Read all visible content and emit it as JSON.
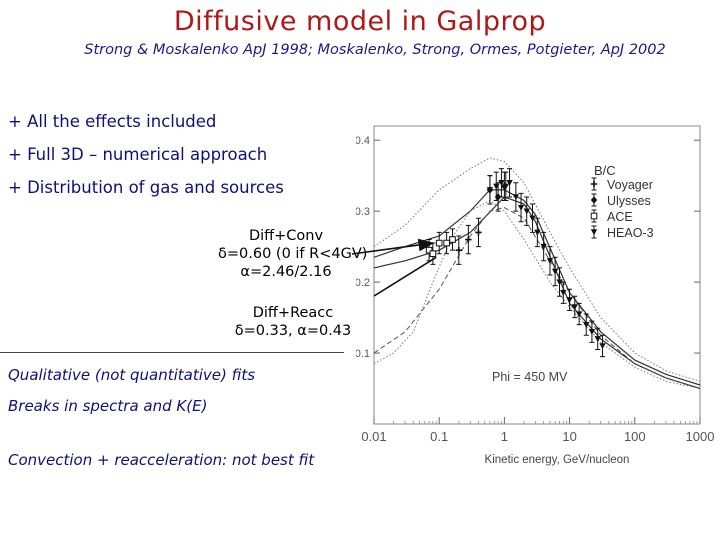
{
  "slide": {
    "title": "Diffusive model in Galprop",
    "subtitle": "Strong & Moskalenko ApJ 1998; Moskalenko, Strong, Ormes, Potgieter, ApJ 2002",
    "bullets": [
      "+ All the effects included",
      "+ Full 3D – numerical approach",
      "+ Distribution of gas and sources"
    ],
    "conv_note": {
      "line1": "Diff+Conv",
      "line2": "δ=0.60 (0 if R<4GV)",
      "line3": "α=2.46/2.16"
    },
    "reacc_note": {
      "line1": "Diff+Reacc",
      "line2": "δ=0.33, α=0.43"
    },
    "notes": [
      "Qualitative (not quantitative) fits",
      "Breaks in spectra and K(E)",
      "Convection + reacceleration: not best fit"
    ]
  },
  "chart_data": {
    "type": "scatter",
    "title": "",
    "ratio_label": "B/C",
    "phi_label": "Phi = 450 MV",
    "xlabel": "Kinetic energy, GeV/nucleon",
    "ylabel": "",
    "xscale": "log",
    "xlim": [
      0.01,
      1000
    ],
    "ylim": [
      0,
      0.42
    ],
    "x_ticks": [
      0.01,
      0.1,
      1,
      10,
      100,
      1000
    ],
    "x_tick_labels": [
      "0.01",
      "0.1",
      "1",
      "10",
      "100",
      "1000"
    ],
    "y_ticks": [
      0.1,
      0.2,
      0.3,
      0.4
    ],
    "y_tick_labels": [
      "0.1",
      "0.2",
      "0.3",
      "0.4"
    ],
    "legend_position": "top-right",
    "colors": {
      "data": "#111111",
      "model_solid": "#333333",
      "model_dotted": "#777777",
      "model_dashed": "#555555",
      "arrow": "#111111"
    },
    "series": [
      {
        "name": "Voyager",
        "marker": "plus",
        "x": [
          0.2,
          0.28,
          0.4
        ],
        "y": [
          0.245,
          0.26,
          0.27
        ],
        "err": [
          0.02,
          0.02,
          0.02
        ]
      },
      {
        "name": "Ulysses",
        "marker": "diamond",
        "x": [
          0.6,
          0.8,
          1.0
        ],
        "y": [
          0.33,
          0.32,
          0.335
        ],
        "err": [
          0.02,
          0.02,
          0.02
        ]
      },
      {
        "name": "ACE",
        "marker": "square",
        "x": [
          0.07,
          0.08,
          0.1,
          0.13,
          0.16
        ],
        "y": [
          0.245,
          0.24,
          0.255,
          0.255,
          0.26
        ],
        "err": [
          0.015,
          0.015,
          0.015,
          0.015,
          0.015
        ]
      },
      {
        "name": "HEAO-3",
        "marker": "triangle",
        "x": [
          0.6,
          0.75,
          0.9,
          1.05,
          1.2,
          1.5,
          1.8,
          2.2,
          2.7,
          3.2,
          4,
          5,
          6,
          7,
          8,
          10,
          12,
          14,
          18,
          22,
          27,
          32
        ],
        "y": [
          0.33,
          0.335,
          0.34,
          0.335,
          0.34,
          0.32,
          0.305,
          0.3,
          0.29,
          0.27,
          0.25,
          0.23,
          0.215,
          0.2,
          0.185,
          0.175,
          0.165,
          0.155,
          0.14,
          0.13,
          0.12,
          0.11
        ],
        "err": [
          0.02,
          0.02,
          0.02,
          0.02,
          0.02,
          0.02,
          0.02,
          0.02,
          0.02,
          0.02,
          0.02,
          0.02,
          0.02,
          0.02,
          0.015,
          0.015,
          0.015,
          0.015,
          0.015,
          0.015,
          0.015,
          0.015
        ]
      }
    ],
    "model_curves": [
      {
        "style": "solid",
        "x": [
          0.01,
          0.03,
          0.1,
          0.3,
          1,
          2,
          3,
          10,
          30,
          100,
          300,
          1000
        ],
        "y": [
          0.22,
          0.23,
          0.245,
          0.27,
          0.32,
          0.31,
          0.285,
          0.17,
          0.12,
          0.085,
          0.065,
          0.05
        ]
      },
      {
        "style": "solid",
        "x": [
          0.01,
          0.03,
          0.1,
          0.3,
          0.6,
          1,
          2,
          3,
          10,
          30,
          100,
          300,
          1000
        ],
        "y": [
          0.235,
          0.25,
          0.265,
          0.3,
          0.33,
          0.33,
          0.315,
          0.295,
          0.185,
          0.13,
          0.09,
          0.07,
          0.055
        ]
      },
      {
        "style": "dotted",
        "x": [
          0.01,
          0.03,
          0.1,
          0.3,
          0.6,
          1,
          2,
          5,
          10,
          30,
          100,
          300,
          1000
        ],
        "y": [
          0.25,
          0.28,
          0.33,
          0.36,
          0.375,
          0.37,
          0.34,
          0.27,
          0.22,
          0.15,
          0.1,
          0.075,
          0.06
        ]
      },
      {
        "style": "dotted",
        "x": [
          0.01,
          0.02,
          0.04,
          0.08,
          0.15,
          0.3,
          0.6,
          1,
          2,
          5,
          10,
          30,
          100,
          300,
          1000
        ],
        "y": [
          0.085,
          0.1,
          0.13,
          0.2,
          0.26,
          0.3,
          0.315,
          0.3,
          0.26,
          0.2,
          0.165,
          0.115,
          0.08,
          0.06,
          0.05
        ]
      },
      {
        "style": "dashed",
        "x": [
          0.01,
          0.03,
          0.1,
          0.3,
          0.6,
          1,
          2,
          5,
          10,
          30,
          100,
          300,
          1000
        ],
        "y": [
          0.1,
          0.13,
          0.19,
          0.265,
          0.3,
          0.305,
          0.29,
          0.23,
          0.185,
          0.125,
          0.085,
          0.065,
          0.05
        ]
      }
    ],
    "arrows": [
      {
        "from": "conv_note",
        "to_x": 0.08,
        "to_y": 0.255
      },
      {
        "from": "reacc_note",
        "to_x": 0.09,
        "to_y": 0.235
      }
    ]
  }
}
